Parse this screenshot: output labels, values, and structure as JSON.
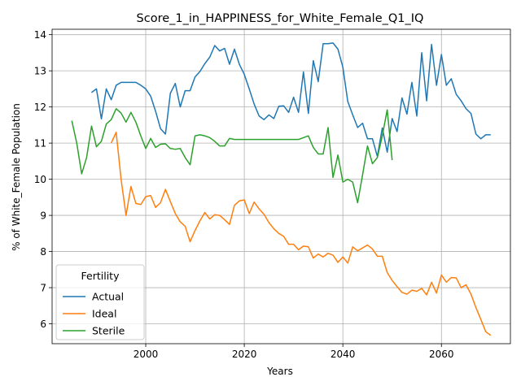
{
  "chart_data": {
    "type": "line",
    "title": "Score_1_in_HAPPINESS_for_White_Female_Q1_IQ",
    "xlabel": "Years",
    "ylabel": "% of White_Female Population",
    "xlim": [
      1981,
      2074
    ],
    "ylim": [
      5.45,
      14.15
    ],
    "xticks": [
      2000,
      2020,
      2040,
      2060
    ],
    "yticks": [
      6,
      7,
      8,
      9,
      10,
      11,
      12,
      13,
      14
    ],
    "grid": true,
    "legend": {
      "title": "Fertility",
      "placement": "lower-left"
    },
    "series": [
      {
        "name": "Actual",
        "color": "#1f77b4",
        "points": [
          [
            1989,
            12.4
          ],
          [
            1990,
            12.5
          ],
          [
            1991,
            11.67
          ],
          [
            1992,
            12.5
          ],
          [
            1993,
            12.2
          ],
          [
            1994,
            12.6
          ],
          [
            1995,
            12.68
          ],
          [
            1996,
            12.68
          ],
          [
            1997,
            12.68
          ],
          [
            1998,
            12.68
          ],
          [
            1999,
            12.6
          ],
          [
            2000,
            12.5
          ],
          [
            2001,
            12.3
          ],
          [
            2002,
            11.88
          ],
          [
            2003,
            11.4
          ],
          [
            2004,
            11.25
          ],
          [
            2005,
            12.38
          ],
          [
            2006,
            12.65
          ],
          [
            2007,
            12.0
          ],
          [
            2008,
            12.45
          ],
          [
            2009,
            12.45
          ],
          [
            2010,
            12.83
          ],
          [
            2011,
            12.98
          ],
          [
            2012,
            13.2
          ],
          [
            2013,
            13.38
          ],
          [
            2014,
            13.7
          ],
          [
            2015,
            13.55
          ],
          [
            2016,
            13.62
          ],
          [
            2017,
            13.18
          ],
          [
            2018,
            13.6
          ],
          [
            2019,
            13.18
          ],
          [
            2020,
            12.9
          ],
          [
            2021,
            12.5
          ],
          [
            2022,
            12.08
          ],
          [
            2023,
            11.75
          ],
          [
            2024,
            11.65
          ],
          [
            2025,
            11.78
          ],
          [
            2026,
            11.68
          ],
          [
            2027,
            12.02
          ],
          [
            2028,
            12.03
          ],
          [
            2029,
            11.85
          ],
          [
            2030,
            12.27
          ],
          [
            2031,
            11.85
          ],
          [
            2032,
            12.97
          ],
          [
            2033,
            11.82
          ],
          [
            2034,
            13.28
          ],
          [
            2035,
            12.7
          ],
          [
            2036,
            13.75
          ],
          [
            2037,
            13.75
          ],
          [
            2038,
            13.77
          ],
          [
            2039,
            13.6
          ],
          [
            2040,
            13.1
          ],
          [
            2041,
            12.15
          ],
          [
            2042,
            11.78
          ],
          [
            2043,
            11.43
          ],
          [
            2044,
            11.55
          ],
          [
            2045,
            11.12
          ],
          [
            2046,
            11.12
          ],
          [
            2047,
            10.63
          ],
          [
            2048,
            11.42
          ],
          [
            2049,
            10.75
          ],
          [
            2050,
            11.68
          ],
          [
            2051,
            11.32
          ],
          [
            2052,
            12.25
          ],
          [
            2053,
            11.8
          ],
          [
            2054,
            12.68
          ],
          [
            2055,
            11.75
          ],
          [
            2056,
            13.5
          ],
          [
            2057,
            12.17
          ],
          [
            2058,
            13.73
          ],
          [
            2059,
            12.6
          ],
          [
            2060,
            13.45
          ],
          [
            2061,
            12.6
          ],
          [
            2062,
            12.78
          ],
          [
            2063,
            12.35
          ],
          [
            2064,
            12.17
          ],
          [
            2065,
            11.95
          ],
          [
            2066,
            11.82
          ],
          [
            2067,
            11.25
          ],
          [
            2068,
            11.12
          ],
          [
            2069,
            11.23
          ],
          [
            2070,
            11.23
          ]
        ]
      },
      {
        "name": "Ideal",
        "color": "#ff7f0e",
        "points": [
          [
            1993,
            11.0
          ],
          [
            1994,
            11.3
          ],
          [
            1995,
            10.0
          ],
          [
            1996,
            9.0
          ],
          [
            1997,
            9.8
          ],
          [
            1998,
            9.33
          ],
          [
            1999,
            9.3
          ],
          [
            2000,
            9.52
          ],
          [
            2001,
            9.55
          ],
          [
            2002,
            9.22
          ],
          [
            2003,
            9.35
          ],
          [
            2004,
            9.72
          ],
          [
            2005,
            9.38
          ],
          [
            2006,
            9.05
          ],
          [
            2007,
            8.82
          ],
          [
            2008,
            8.7
          ],
          [
            2009,
            8.27
          ],
          [
            2010,
            8.58
          ],
          [
            2011,
            8.85
          ],
          [
            2012,
            9.08
          ],
          [
            2013,
            8.9
          ],
          [
            2014,
            9.02
          ],
          [
            2015,
            9.0
          ],
          [
            2016,
            8.88
          ],
          [
            2017,
            8.75
          ],
          [
            2018,
            9.28
          ],
          [
            2019,
            9.4
          ],
          [
            2020,
            9.43
          ],
          [
            2021,
            9.05
          ],
          [
            2022,
            9.37
          ],
          [
            2023,
            9.18
          ],
          [
            2024,
            9.03
          ],
          [
            2025,
            8.8
          ],
          [
            2026,
            8.63
          ],
          [
            2027,
            8.5
          ],
          [
            2028,
            8.42
          ],
          [
            2029,
            8.2
          ],
          [
            2030,
            8.2
          ],
          [
            2031,
            8.05
          ],
          [
            2032,
            8.15
          ],
          [
            2033,
            8.13
          ],
          [
            2034,
            7.82
          ],
          [
            2035,
            7.93
          ],
          [
            2036,
            7.85
          ],
          [
            2037,
            7.95
          ],
          [
            2038,
            7.9
          ],
          [
            2039,
            7.7
          ],
          [
            2040,
            7.85
          ],
          [
            2041,
            7.68
          ],
          [
            2042,
            8.13
          ],
          [
            2043,
            8.02
          ],
          [
            2044,
            8.1
          ],
          [
            2045,
            8.18
          ],
          [
            2046,
            8.07
          ],
          [
            2047,
            7.87
          ],
          [
            2048,
            7.87
          ],
          [
            2049,
            7.42
          ],
          [
            2050,
            7.2
          ],
          [
            2051,
            7.03
          ],
          [
            2052,
            6.87
          ],
          [
            2053,
            6.82
          ],
          [
            2054,
            6.93
          ],
          [
            2055,
            6.9
          ],
          [
            2056,
            6.98
          ],
          [
            2057,
            6.8
          ],
          [
            2058,
            7.15
          ],
          [
            2059,
            6.85
          ],
          [
            2060,
            7.35
          ],
          [
            2061,
            7.15
          ],
          [
            2062,
            7.28
          ],
          [
            2063,
            7.27
          ],
          [
            2064,
            7.0
          ],
          [
            2065,
            7.08
          ],
          [
            2066,
            6.82
          ],
          [
            2067,
            6.45
          ],
          [
            2068,
            6.12
          ],
          [
            2069,
            5.78
          ],
          [
            2070,
            5.68
          ]
        ]
      },
      {
        "name": "Sterile",
        "color": "#2ca02c",
        "points": [
          [
            1985,
            11.62
          ],
          [
            1986,
            11.0
          ],
          [
            1987,
            10.15
          ],
          [
            1988,
            10.6
          ],
          [
            1989,
            11.47
          ],
          [
            1990,
            10.9
          ],
          [
            1991,
            11.05
          ],
          [
            1992,
            11.53
          ],
          [
            1993,
            11.65
          ],
          [
            1994,
            11.95
          ],
          [
            1995,
            11.83
          ],
          [
            1996,
            11.58
          ],
          [
            1997,
            11.85
          ],
          [
            1998,
            11.58
          ],
          [
            1999,
            11.2
          ],
          [
            2000,
            10.85
          ],
          [
            2001,
            11.13
          ],
          [
            2002,
            10.88
          ],
          [
            2003,
            10.97
          ],
          [
            2004,
            10.98
          ],
          [
            2005,
            10.85
          ],
          [
            2006,
            10.83
          ],
          [
            2007,
            10.85
          ],
          [
            2008,
            10.6
          ],
          [
            2009,
            10.4
          ],
          [
            2010,
            11.2
          ],
          [
            2011,
            11.23
          ],
          [
            2012,
            11.2
          ],
          [
            2013,
            11.15
          ],
          [
            2014,
            11.05
          ],
          [
            2015,
            10.92
          ],
          [
            2016,
            10.92
          ],
          [
            2017,
            11.13
          ],
          [
            2018,
            11.1
          ],
          [
            2019,
            11.1
          ],
          [
            2020,
            11.1
          ],
          [
            2021,
            11.1
          ],
          [
            2022,
            11.1
          ],
          [
            2023,
            11.1
          ],
          [
            2024,
            11.1
          ],
          [
            2025,
            11.1
          ],
          [
            2026,
            11.1
          ],
          [
            2027,
            11.1
          ],
          [
            2028,
            11.1
          ],
          [
            2029,
            11.1
          ],
          [
            2030,
            11.1
          ],
          [
            2031,
            11.1
          ],
          [
            2032,
            11.15
          ],
          [
            2033,
            11.2
          ],
          [
            2034,
            10.88
          ],
          [
            2035,
            10.7
          ],
          [
            2036,
            10.7
          ],
          [
            2037,
            11.43
          ],
          [
            2038,
            10.05
          ],
          [
            2039,
            10.67
          ],
          [
            2040,
            9.92
          ],
          [
            2041,
            10.0
          ],
          [
            2042,
            9.92
          ],
          [
            2043,
            9.35
          ],
          [
            2044,
            10.12
          ],
          [
            2045,
            10.92
          ],
          [
            2046,
            10.43
          ],
          [
            2047,
            10.6
          ],
          [
            2048,
            11.2
          ],
          [
            2049,
            11.92
          ],
          [
            2050,
            10.53
          ]
        ]
      }
    ]
  }
}
